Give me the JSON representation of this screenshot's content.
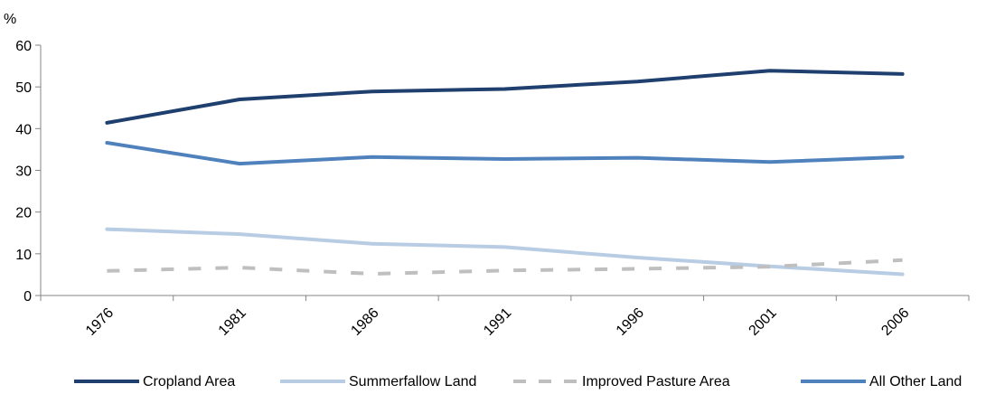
{
  "chart_data": {
    "type": "line",
    "title": "",
    "xlabel": "",
    "ylabel": "%",
    "ylim": [
      0,
      60
    ],
    "yticks": [
      0,
      10,
      20,
      30,
      40,
      50,
      60
    ],
    "categories": [
      "1976",
      "1981",
      "1986",
      "1991",
      "1996",
      "2001",
      "2006"
    ],
    "grid": false,
    "legend_position": "bottom",
    "series": [
      {
        "name": "Cropland Area",
        "values": [
          41.4,
          47.0,
          48.9,
          49.5,
          51.3,
          53.9,
          53.1
        ],
        "color": "#1f3f6e",
        "dashed": false
      },
      {
        "name": "Summerfallow Land",
        "values": [
          15.9,
          14.7,
          12.4,
          11.6,
          9.1,
          7.0,
          5.1
        ],
        "color": "#b8cce4",
        "dashed": false
      },
      {
        "name": "Improved Pasture Area",
        "values": [
          5.9,
          6.7,
          5.2,
          6.0,
          6.4,
          6.9,
          8.5
        ],
        "color": "#bfbfbf",
        "dashed": true
      },
      {
        "name": "All Other Land",
        "values": [
          36.6,
          31.6,
          33.2,
          32.7,
          33.0,
          32.0,
          33.2
        ],
        "color": "#4f81bd",
        "dashed": false
      }
    ]
  }
}
